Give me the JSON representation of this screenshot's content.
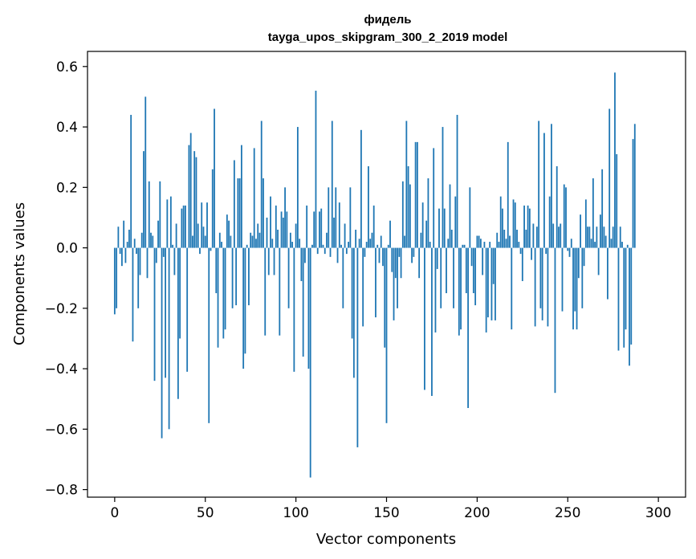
{
  "chart_data": {
    "type": "bar",
    "title_line1": "фидель",
    "title_line2": "tayga_upos_skipgram_300_2_2019 model",
    "xlabel": "Vector components",
    "ylabel": "Components values",
    "xlim": [
      -15,
      315
    ],
    "ylim": [
      -0.825,
      0.65
    ],
    "x_ticks": [
      0,
      50,
      100,
      150,
      200,
      250,
      300
    ],
    "x_tick_labels": [
      "0",
      "50",
      "100",
      "150",
      "200",
      "250",
      "300"
    ],
    "y_ticks": [
      -0.8,
      -0.6,
      -0.4,
      -0.2,
      0.0,
      0.2,
      0.4,
      0.6
    ],
    "y_tick_labels": [
      "−0.8",
      "−0.6",
      "−0.4",
      "−0.2",
      "0.0",
      "0.2",
      "0.4",
      "0.6"
    ],
    "bar_color": "#1f77b4",
    "grid": false,
    "values": [
      -0.22,
      -0.2,
      0.07,
      -0.02,
      -0.06,
      0.09,
      -0.05,
      0.02,
      0.06,
      0.44,
      -0.31,
      0.03,
      -0.02,
      -0.2,
      -0.09,
      0.05,
      0.32,
      0.5,
      -0.1,
      0.22,
      0.05,
      0.04,
      -0.44,
      -0.05,
      0.09,
      0.22,
      -0.63,
      -0.03,
      -0.43,
      0.16,
      -0.6,
      0.17,
      0.01,
      -0.09,
      0.08,
      -0.5,
      -0.3,
      0.13,
      0.14,
      0.14,
      -0.41,
      0.34,
      0.38,
      0.04,
      0.32,
      0.3,
      0.08,
      -0.02,
      0.15,
      0.07,
      0.04,
      0.15,
      -0.58,
      -0.01,
      0.26,
      0.46,
      -0.15,
      -0.33,
      0.05,
      0.02,
      -0.3,
      -0.27,
      0.11,
      0.09,
      0.04,
      -0.2,
      0.29,
      -0.19,
      0.23,
      0.23,
      0.34,
      -0.4,
      -0.35,
      0.01,
      -0.19,
      0.05,
      0.04,
      0.33,
      0.03,
      0.08,
      0.05,
      0.42,
      0.23,
      -0.29,
      0.1,
      -0.09,
      0.17,
      0.03,
      -0.09,
      0.14,
      0.06,
      -0.29,
      0.12,
      0.1,
      0.2,
      0.12,
      -0.2,
      0.05,
      0.02,
      -0.41,
      0.08,
      0.4,
      0.03,
      -0.11,
      -0.36,
      -0.05,
      0.14,
      -0.4,
      -0.76,
      0.01,
      0.12,
      0.52,
      -0.02,
      0.12,
      0.13,
      0.01,
      -0.02,
      0.05,
      0.2,
      -0.03,
      0.42,
      0.1,
      0.2,
      -0.05,
      0.15,
      0.01,
      -0.2,
      0.08,
      -0.02,
      0.02,
      0.2,
      -0.3,
      -0.43,
      0.06,
      -0.66,
      0.03,
      0.39,
      -0.26,
      -0.03,
      0.02,
      0.27,
      0.03,
      0.05,
      0.14,
      -0.23,
      0.01,
      -0.05,
      0.04,
      -0.06,
      -0.33,
      -0.58,
      0.01,
      0.09,
      -0.08,
      -0.24,
      -0.1,
      -0.2,
      -0.03,
      -0.1,
      0.22,
      0.04,
      0.42,
      0.27,
      0.21,
      -0.05,
      -0.03,
      0.35,
      0.35,
      -0.1,
      0.05,
      0.15,
      -0.47,
      0.09,
      0.23,
      0.02,
      -0.49,
      0.33,
      -0.28,
      -0.07,
      0.13,
      -0.2,
      0.4,
      0.13,
      -0.15,
      0.03,
      0.21,
      0.06,
      -0.2,
      0.17,
      0.44,
      -0.29,
      -0.27,
      0.01,
      0.01,
      -0.15,
      -0.53,
      0.2,
      -0.06,
      -0.15,
      -0.19,
      0.04,
      0.04,
      0.03,
      -0.09,
      0.02,
      -0.28,
      -0.23,
      0.02,
      -0.24,
      -0.12,
      -0.24,
      0.05,
      0.02,
      0.17,
      0.13,
      0.06,
      0.03,
      0.35,
      0.04,
      -0.27,
      0.16,
      0.15,
      0.06,
      0.02,
      -0.02,
      -0.11,
      0.14,
      0.06,
      0.14,
      0.13,
      -0.04,
      0.08,
      -0.26,
      0.07,
      0.42,
      -0.2,
      -0.24,
      0.38,
      -0.02,
      -0.26,
      0.17,
      0.41,
      0.08,
      -0.48,
      0.27,
      0.07,
      0.08,
      -0.21,
      0.21,
      0.2,
      -0.01,
      -0.03,
      0.03,
      -0.27,
      -0.21,
      -0.27,
      -0.1,
      0.11,
      -0.2,
      -0.06,
      0.16,
      0.07,
      0.07,
      0.03,
      0.23,
      0.02,
      0.07,
      -0.09,
      0.11,
      0.26,
      0.07,
      0.04,
      -0.17,
      0.46,
      0.03,
      0.07,
      0.58,
      0.31,
      -0.34,
      0.07,
      0.02,
      -0.33,
      -0.27,
      0.01,
      -0.39,
      -0.32,
      0.36,
      0.41
    ]
  }
}
